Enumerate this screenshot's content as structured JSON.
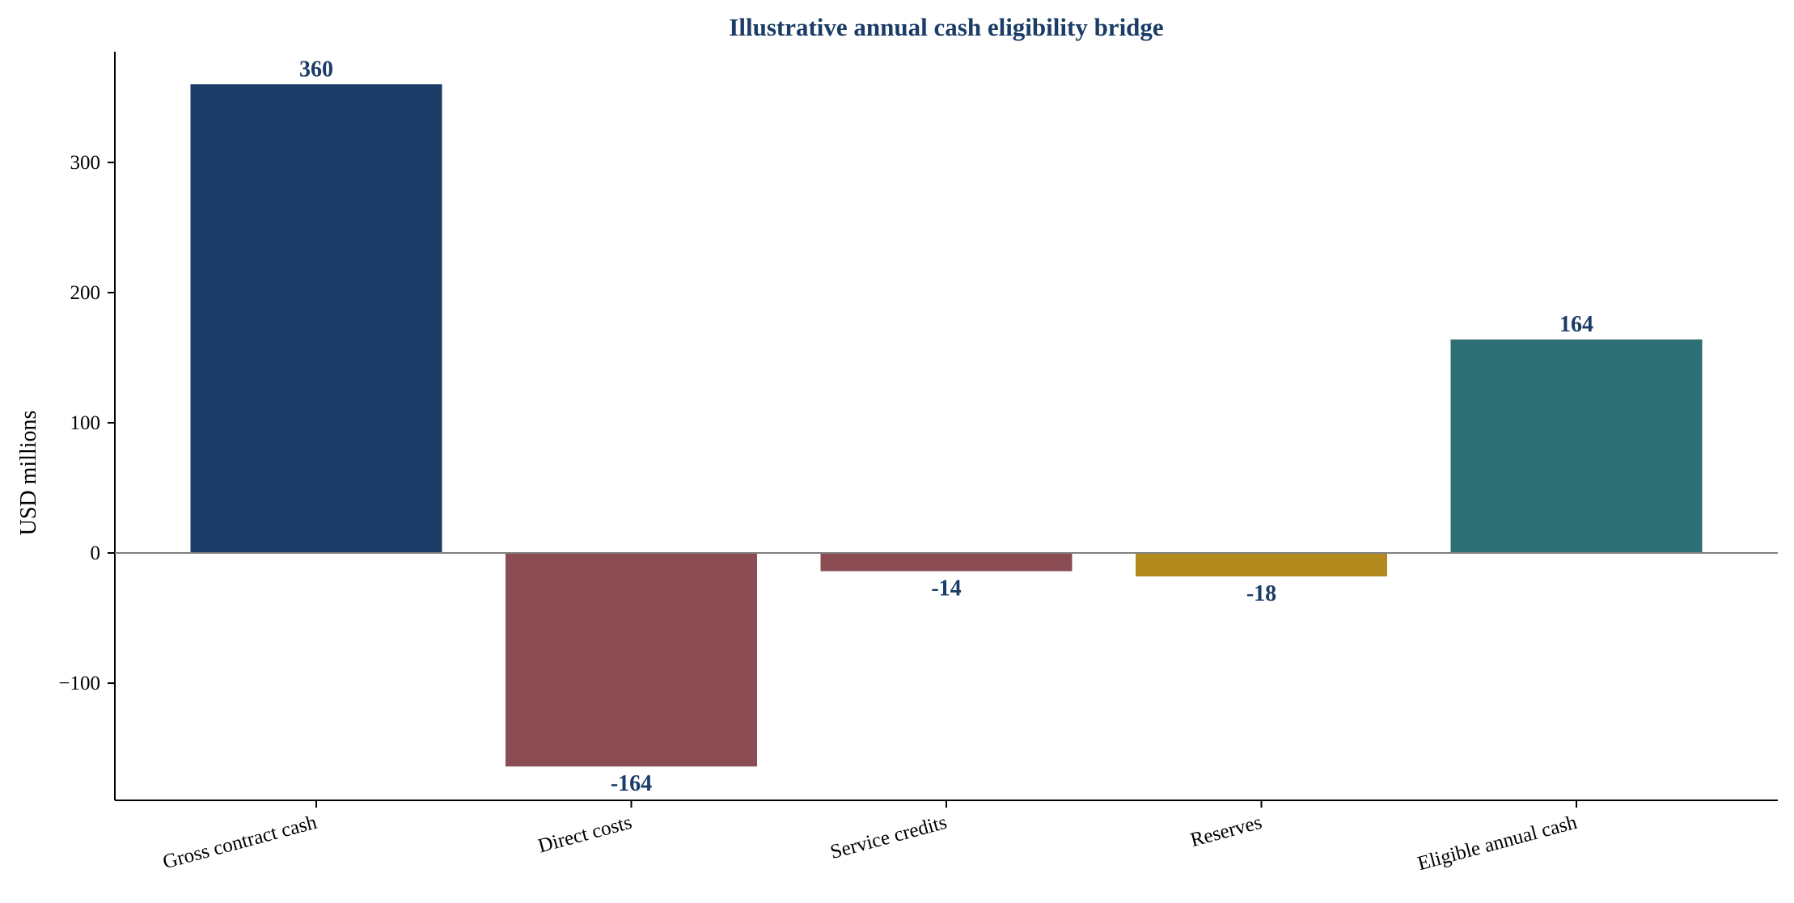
{
  "chart_data": {
    "type": "bar",
    "title": "Illustrative annual cash eligibility bridge",
    "xlabel": "",
    "ylabel": "USD millions",
    "categories": [
      "Gross contract cash",
      "Direct costs",
      "Service credits",
      "Reserves",
      "Eligible annual cash"
    ],
    "values": [
      360,
      -164,
      -14,
      -18,
      164
    ],
    "data_labels": [
      "360",
      "-164",
      "-14",
      "-18",
      "164"
    ],
    "bar_colors": [
      "#1a3c66",
      "#8b4c53",
      "#8b4c53",
      "#b38a1e",
      "#2e6f74"
    ],
    "ylim": [
      -190,
      385
    ],
    "yticks": [
      -100,
      0,
      100,
      200,
      300
    ],
    "ytick_labels": [
      "−100",
      "0",
      "100",
      "200",
      "300"
    ],
    "zero_line": true,
    "grid": false,
    "legend": "none",
    "colors": {
      "title": "#1a3c66",
      "data_label": "#1a3c66",
      "zero_line": "#808080",
      "axis": "#000000"
    }
  }
}
